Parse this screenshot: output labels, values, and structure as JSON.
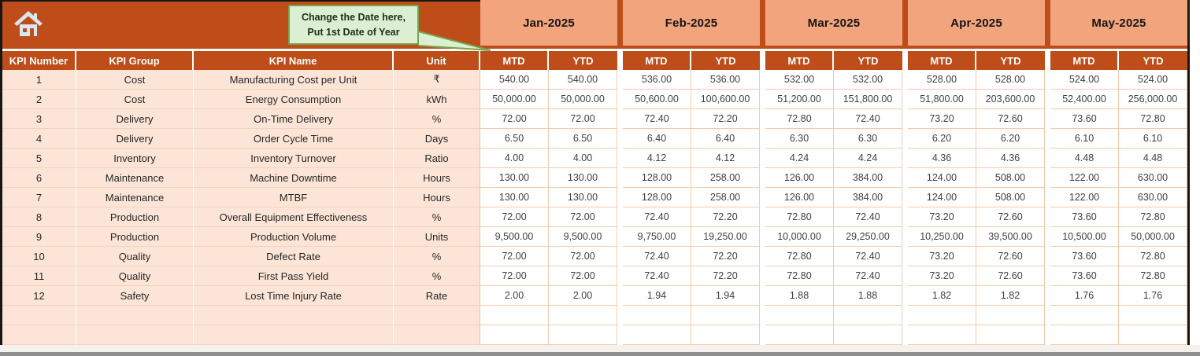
{
  "callout": {
    "line1": "Change the Date here,",
    "line2": "Put 1st Date of Year"
  },
  "labels": {
    "kpi_number": "KPI Number",
    "kpi_group": "KPI Group",
    "kpi_name": "KPI Name",
    "unit": "Unit",
    "mtd": "MTD",
    "ytd": "YTD"
  },
  "months": [
    "Jan-2025",
    "Feb-2025",
    "Mar-2025",
    "Apr-2025",
    "May-2025"
  ],
  "colors": {
    "header_orange": "#BE4D1A",
    "month_salmon": "#F2A47D",
    "row_peach": "#FCE5D6",
    "callout_green": "#DCEFD2",
    "callout_border": "#76A34E"
  },
  "table": {
    "rows": [
      {
        "num": "1",
        "group": "Cost",
        "name": "Manufacturing Cost per Unit",
        "unit": "₹",
        "values": [
          "540.00",
          "540.00",
          "536.00",
          "536.00",
          "532.00",
          "532.00",
          "528.00",
          "528.00",
          "524.00",
          "524.00"
        ]
      },
      {
        "num": "2",
        "group": "Cost",
        "name": "Energy Consumption",
        "unit": "kWh",
        "values": [
          "50,000.00",
          "50,000.00",
          "50,600.00",
          "100,600.00",
          "51,200.00",
          "151,800.00",
          "51,800.00",
          "203,600.00",
          "52,400.00",
          "256,000.00"
        ]
      },
      {
        "num": "3",
        "group": "Delivery",
        "name": "On-Time Delivery",
        "unit": "%",
        "values": [
          "72.00",
          "72.00",
          "72.40",
          "72.20",
          "72.80",
          "72.40",
          "73.20",
          "72.60",
          "73.60",
          "72.80"
        ]
      },
      {
        "num": "4",
        "group": "Delivery",
        "name": "Order Cycle Time",
        "unit": "Days",
        "values": [
          "6.50",
          "6.50",
          "6.40",
          "6.40",
          "6.30",
          "6.30",
          "6.20",
          "6.20",
          "6.10",
          "6.10"
        ]
      },
      {
        "num": "5",
        "group": "Inventory",
        "name": "Inventory Turnover",
        "unit": "Ratio",
        "values": [
          "4.00",
          "4.00",
          "4.12",
          "4.12",
          "4.24",
          "4.24",
          "4.36",
          "4.36",
          "4.48",
          "4.48"
        ]
      },
      {
        "num": "6",
        "group": "Maintenance",
        "name": "Machine Downtime",
        "unit": "Hours",
        "values": [
          "130.00",
          "130.00",
          "128.00",
          "258.00",
          "126.00",
          "384.00",
          "124.00",
          "508.00",
          "122.00",
          "630.00"
        ]
      },
      {
        "num": "7",
        "group": "Maintenance",
        "name": "MTBF",
        "unit": "Hours",
        "values": [
          "130.00",
          "130.00",
          "128.00",
          "258.00",
          "126.00",
          "384.00",
          "124.00",
          "508.00",
          "122.00",
          "630.00"
        ]
      },
      {
        "num": "8",
        "group": "Production",
        "name": "Overall Equipment Effectiveness",
        "unit": "%",
        "values": [
          "72.00",
          "72.00",
          "72.40",
          "72.20",
          "72.80",
          "72.40",
          "73.20",
          "72.60",
          "73.60",
          "72.80"
        ]
      },
      {
        "num": "9",
        "group": "Production",
        "name": "Production Volume",
        "unit": "Units",
        "values": [
          "9,500.00",
          "9,500.00",
          "9,750.00",
          "19,250.00",
          "10,000.00",
          "29,250.00",
          "10,250.00",
          "39,500.00",
          "10,500.00",
          "50,000.00"
        ]
      },
      {
        "num": "10",
        "group": "Quality",
        "name": "Defect Rate",
        "unit": "%",
        "values": [
          "72.00",
          "72.00",
          "72.40",
          "72.20",
          "72.80",
          "72.40",
          "73.20",
          "72.60",
          "73.60",
          "72.80"
        ]
      },
      {
        "num": "11",
        "group": "Quality",
        "name": "First Pass Yield",
        "unit": "%",
        "values": [
          "72.00",
          "72.00",
          "72.40",
          "72.20",
          "72.80",
          "72.40",
          "73.20",
          "72.60",
          "73.60",
          "72.80"
        ]
      },
      {
        "num": "12",
        "group": "Safety",
        "name": "Lost Time Injury Rate",
        "unit": "Rate",
        "values": [
          "2.00",
          "2.00",
          "1.94",
          "1.94",
          "1.88",
          "1.88",
          "1.82",
          "1.82",
          "1.76",
          "1.76"
        ]
      },
      {
        "num": "",
        "group": "",
        "name": "",
        "unit": "",
        "values": [
          "",
          "",
          "",
          "",
          "",
          "",
          "",
          "",
          "",
          ""
        ]
      },
      {
        "num": "",
        "group": "",
        "name": "",
        "unit": "",
        "values": [
          "",
          "",
          "",
          "",
          "",
          "",
          "",
          "",
          "",
          ""
        ]
      }
    ]
  }
}
